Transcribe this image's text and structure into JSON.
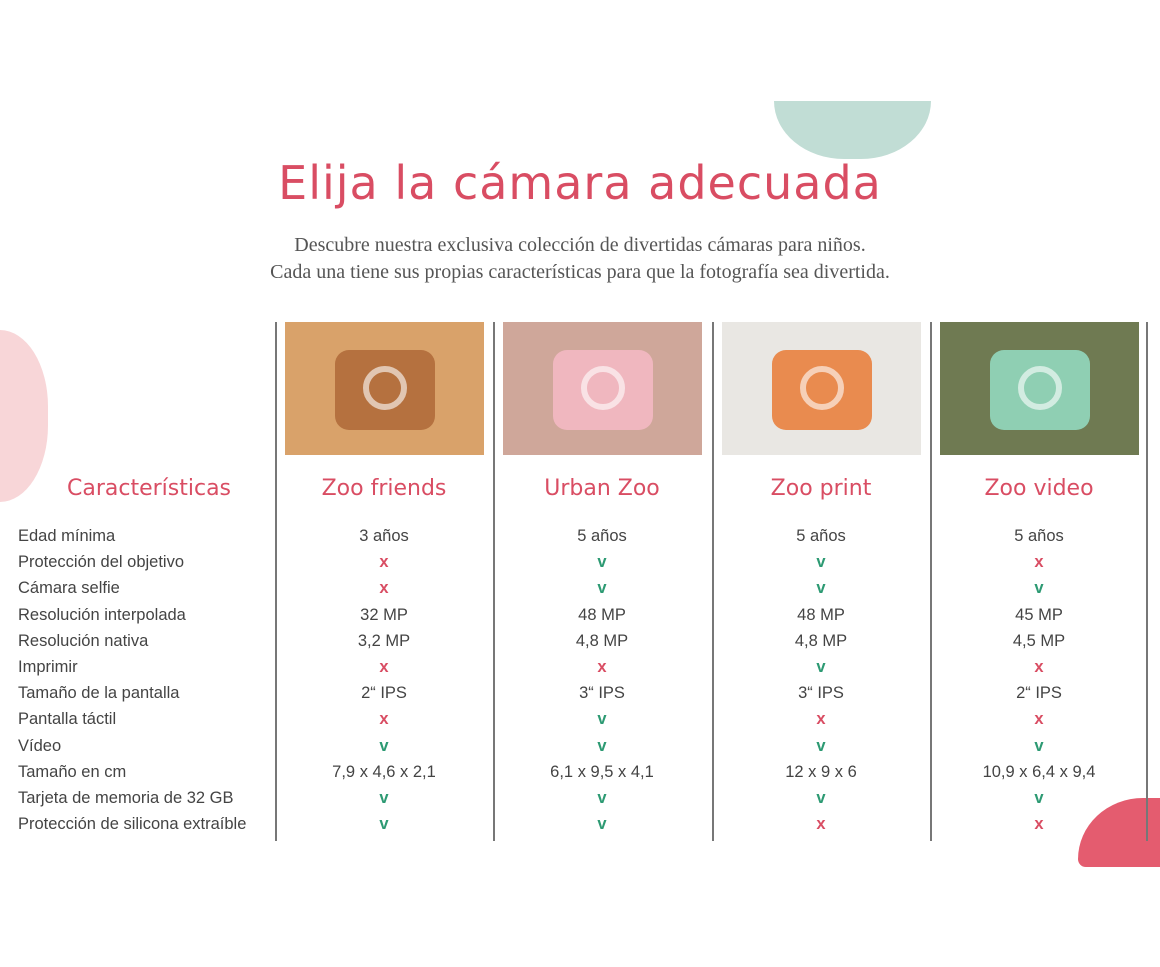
{
  "title": "Elija la cámara adecuada",
  "subtitle": [
    "Descubre nuestra exclusiva colección de divertidas cámaras para niños.",
    "Cada una tiene sus propias características para que la fotografía sea divertida."
  ],
  "colors": {
    "accent": "#d94d63",
    "yes": "#2d9a73",
    "mint": "#c1ddd5"
  },
  "features_header": "Características",
  "features": [
    "Edad mínima",
    "Protección del objetivo",
    "Cámara selfie",
    "Resolución interpolada",
    "Resolución nativa",
    "Imprimir",
    "Tamaño de la pantalla",
    "Pantalla táctil",
    "Vídeo",
    "Tamaño en cm",
    "Tarjeta de memoria de 32 GB",
    "Protección de silicona extraíble"
  ],
  "products": [
    {
      "name": "Zoo friends",
      "photo_colors": [
        "#d9a26a",
        "#b5713f"
      ],
      "values": [
        "3 años",
        "x",
        "x",
        "32 MP",
        "3,2 MP",
        "x",
        "2“ IPS",
        "x",
        "v",
        "7,9 x 4,6 x 2,1",
        "v",
        "v"
      ]
    },
    {
      "name": "Urban Zoo",
      "photo_colors": [
        "#cfa79a",
        "#f0b7bf"
      ],
      "values": [
        "5 años",
        "v",
        "v",
        "48 MP",
        "4,8 MP",
        "x",
        "3“ IPS",
        "v",
        "v",
        "6,1 x 9,5 x 4,1",
        "v",
        "v"
      ]
    },
    {
      "name": "Zoo print",
      "photo_colors": [
        "#e9e7e3",
        "#e98b4f"
      ],
      "values": [
        "5 años",
        "v",
        "v",
        "48 MP",
        "4,8 MP",
        "v",
        "3“ IPS",
        "x",
        "v",
        "12 x 9 x 6",
        "v",
        "x"
      ]
    },
    {
      "name": "Zoo video",
      "photo_colors": [
        "#6f7a52",
        "#8fcfb3"
      ],
      "values": [
        "5 años",
        "x",
        "v",
        "45 MP",
        "4,5 MP",
        "x",
        "2“ IPS",
        "x",
        "v",
        "10,9 x 6,4 x 9,4",
        "v",
        "x"
      ]
    }
  ]
}
